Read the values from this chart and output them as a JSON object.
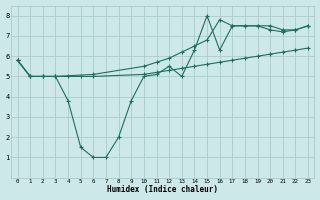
{
  "xlabel": "Humidex (Indice chaleur)",
  "bg_color": "#cce8e8",
  "grid_color": "#aacccc",
  "line_color": "#1a7060",
  "xlim_min": -0.5,
  "xlim_max": 23.5,
  "ylim_min": 0,
  "ylim_max": 8.5,
  "xticks": [
    0,
    1,
    2,
    3,
    4,
    5,
    6,
    7,
    8,
    9,
    10,
    11,
    12,
    13,
    14,
    15,
    16,
    17,
    18,
    19,
    20,
    21,
    22,
    23
  ],
  "yticks": [
    1,
    2,
    3,
    4,
    5,
    6,
    7,
    8
  ],
  "line1_x": [
    0,
    1,
    2,
    3,
    4,
    5,
    6,
    10,
    11,
    12,
    13,
    14,
    15,
    16,
    17,
    18,
    19,
    20,
    21,
    22,
    23
  ],
  "line1_y": [
    5.8,
    5.0,
    5.0,
    5.0,
    5.0,
    5.0,
    5.0,
    5.1,
    5.2,
    5.3,
    5.4,
    5.5,
    5.6,
    5.7,
    5.8,
    5.9,
    6.0,
    6.1,
    6.2,
    6.3,
    6.4
  ],
  "line2_x": [
    0,
    1,
    2,
    3,
    6,
    10,
    11,
    12,
    13,
    14,
    15,
    16,
    17,
    18,
    19,
    20,
    21,
    22,
    23
  ],
  "line2_y": [
    5.8,
    5.0,
    5.0,
    5.0,
    5.1,
    5.5,
    5.7,
    5.9,
    6.2,
    6.5,
    6.8,
    7.8,
    7.5,
    7.5,
    7.5,
    7.5,
    7.3,
    7.3,
    7.5
  ],
  "line3_x": [
    0,
    1,
    2,
    3,
    4,
    5,
    6,
    7,
    8,
    9,
    10,
    11,
    12,
    13,
    14,
    15,
    16,
    17,
    18,
    19,
    20,
    21,
    22,
    23
  ],
  "line3_y": [
    5.8,
    5.0,
    5.0,
    5.0,
    3.8,
    1.5,
    1.0,
    1.0,
    2.0,
    3.8,
    5.0,
    5.1,
    5.5,
    5.0,
    6.3,
    8.0,
    6.3,
    7.5,
    7.5,
    7.5,
    7.3,
    7.2,
    7.3,
    7.5
  ]
}
